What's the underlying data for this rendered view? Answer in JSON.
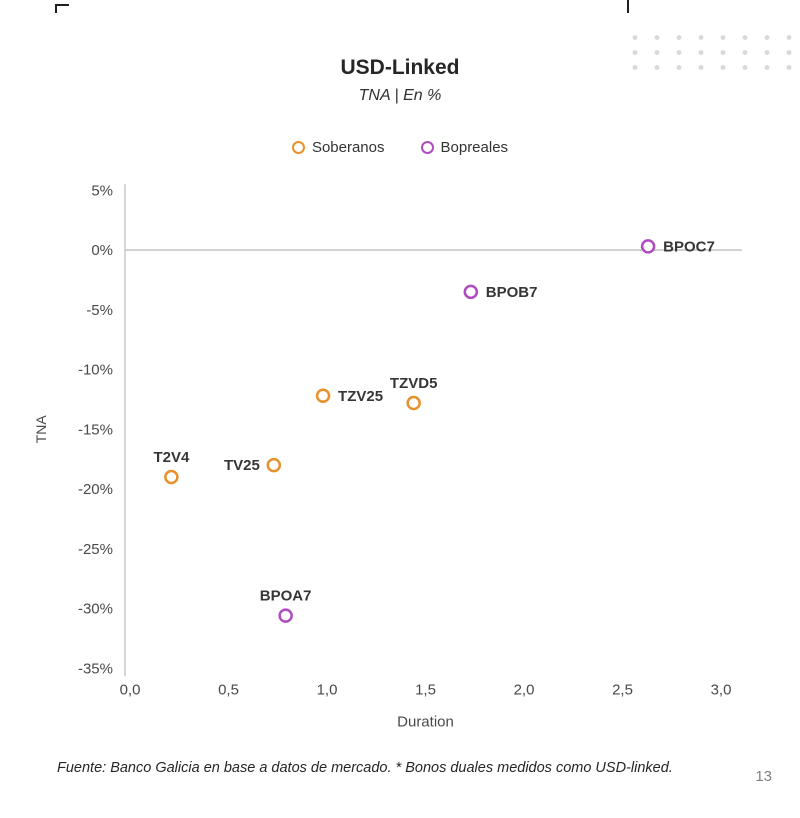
{
  "footer": {
    "source": "Fuente: Banco Galicia en base a datos de mercado. * Bonos duales medidos como USD-linked.",
    "page_number": "13"
  },
  "chart_data": {
    "type": "scatter",
    "title": "USD-Linked",
    "subtitle": "TNA | En %",
    "xlabel": "Duration",
    "ylabel": "TNA",
    "xlim": [
      0.0,
      3.0
    ],
    "ylim": [
      -35,
      5
    ],
    "x_ticks": [
      "0,0",
      "0,5",
      "1,0",
      "1,5",
      "2,0",
      "2,5",
      "3,0"
    ],
    "y_ticks": [
      "5%",
      "0%",
      "-5%",
      "-10%",
      "-15%",
      "-20%",
      "-25%",
      "-30%",
      "-35%"
    ],
    "grid": "zero-line-only",
    "legend_position": "top-center",
    "axis_color": "#c8c8c8",
    "zero_line_color": "#c3c3c3",
    "series": [
      {
        "name": "Soberanos",
        "color": "#E8912C",
        "points": [
          {
            "label": "T2V4",
            "x": 0.21,
            "y": -19.0,
            "label_pos": "above"
          },
          {
            "label": "TV25",
            "x": 0.73,
            "y": -18.0,
            "label_pos": "left"
          },
          {
            "label": "TZV25",
            "x": 0.98,
            "y": -12.2,
            "label_pos": "right"
          },
          {
            "label": "TZVD5",
            "x": 1.44,
            "y": -12.8,
            "label_pos": "above"
          }
        ]
      },
      {
        "name": "Bopreales",
        "color": "#AE4CC0",
        "points": [
          {
            "label": "BPOA7",
            "x": 0.79,
            "y": -30.6,
            "label_pos": "above"
          },
          {
            "label": "BPOB7",
            "x": 1.73,
            "y": -3.5,
            "label_pos": "right"
          },
          {
            "label": "BPOC7",
            "x": 2.63,
            "y": 0.3,
            "label_pos": "right"
          }
        ]
      }
    ]
  }
}
